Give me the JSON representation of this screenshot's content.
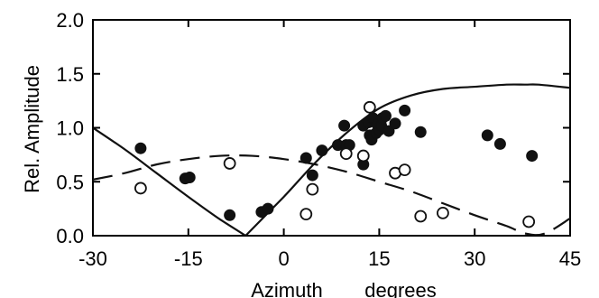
{
  "chart_data": {
    "type": "scatter",
    "title": "",
    "xlabel": "Azimuth",
    "xunit": "degrees",
    "ylabel": "Rel. Amplitude",
    "xlim": [
      -30,
      45
    ],
    "ylim": [
      0.0,
      2.0
    ],
    "x_ticks": [
      -30,
      -15,
      0,
      15,
      30,
      45
    ],
    "y_ticks": [
      0.0,
      0.5,
      1.0,
      1.5,
      2.0
    ],
    "x_tick_labels": [
      "-30",
      "-15",
      "0",
      "15",
      "30",
      "45"
    ],
    "y_tick_labels": [
      "0.0",
      "0.5",
      "1.0",
      "1.5",
      "2.0"
    ],
    "grid": false,
    "legend": "none",
    "series": [
      {
        "marker": "filled-circle",
        "color": "#111111",
        "points": [
          [
            -22.5,
            0.81
          ],
          [
            -15.5,
            0.53
          ],
          [
            -14.8,
            0.54
          ],
          [
            -8.5,
            0.19
          ],
          [
            -3.5,
            0.22
          ],
          [
            -2.5,
            0.25
          ],
          [
            3.5,
            0.72
          ],
          [
            4.5,
            0.56
          ],
          [
            6.0,
            0.79
          ],
          [
            8.5,
            0.84
          ],
          [
            9.5,
            1.02
          ],
          [
            9.8,
            0.84
          ],
          [
            10.3,
            0.84
          ],
          [
            12.5,
            0.66
          ],
          [
            12.5,
            1.02
          ],
          [
            13.3,
            1.05
          ],
          [
            13.5,
            0.93
          ],
          [
            13.8,
            0.89
          ],
          [
            14.0,
            1.09
          ],
          [
            14.5,
            0.95
          ],
          [
            14.7,
            1.03
          ],
          [
            15.0,
            0.98
          ],
          [
            15.3,
            1.02
          ],
          [
            15.5,
            1.09
          ],
          [
            16.0,
            1.11
          ],
          [
            16.5,
            0.97
          ],
          [
            17.5,
            1.04
          ],
          [
            19.0,
            1.16
          ],
          [
            21.5,
            0.96
          ],
          [
            32.0,
            0.93
          ],
          [
            34.0,
            0.85
          ],
          [
            39.0,
            0.74
          ]
        ]
      },
      {
        "marker": "open-circle",
        "color": "#111111",
        "points": [
          [
            -22.5,
            0.44
          ],
          [
            -8.5,
            0.67
          ],
          [
            3.5,
            0.2
          ],
          [
            4.5,
            0.43
          ],
          [
            9.8,
            0.76
          ],
          [
            12.5,
            0.74
          ],
          [
            13.5,
            1.19
          ],
          [
            17.5,
            0.58
          ],
          [
            19.0,
            0.61
          ],
          [
            21.5,
            0.18
          ],
          [
            25.0,
            0.21
          ],
          [
            38.5,
            0.13
          ]
        ]
      },
      {
        "style": "solid-line",
        "color": "#111111",
        "x": [
          -30,
          -25,
          -20,
          -15,
          -10,
          -6,
          0,
          5,
          10,
          15,
          20,
          25,
          30,
          35,
          38,
          40,
          45
        ],
        "y": [
          1.0,
          0.8,
          0.58,
          0.36,
          0.15,
          0.0,
          0.36,
          0.68,
          0.96,
          1.18,
          1.3,
          1.36,
          1.38,
          1.4,
          1.4,
          1.4,
          1.37
        ]
      },
      {
        "style": "dashed-line",
        "color": "#111111",
        "x": [
          -30,
          -25,
          -20,
          -15,
          -10,
          -5,
          0,
          5,
          10,
          15,
          20,
          25,
          30,
          35,
          38,
          41,
          45
        ],
        "y": [
          0.52,
          0.58,
          0.66,
          0.71,
          0.74,
          0.74,
          0.71,
          0.66,
          0.59,
          0.5,
          0.41,
          0.3,
          0.19,
          0.09,
          0.02,
          0.02,
          0.16
        ]
      }
    ]
  }
}
